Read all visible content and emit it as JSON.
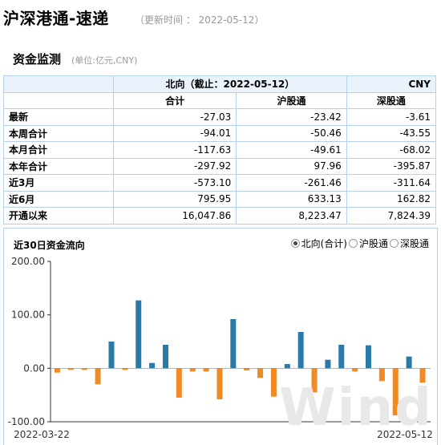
{
  "header": {
    "title": "沪深港通-速递",
    "update_time": "（更新时间 ： 2022-05-12）"
  },
  "section": {
    "title": "资金监测",
    "unit": "(单位:亿元,CNY)"
  },
  "table": {
    "top_title": "北向（截止：2022-05-12）",
    "currency": "CNY",
    "columns": [
      "合计",
      "沪股通",
      "深股通"
    ],
    "rows": [
      {
        "label": "最新",
        "values": [
          "-27.03",
          "-23.42",
          "-3.61"
        ]
      },
      {
        "label": "本周合计",
        "values": [
          "-94.01",
          "-50.46",
          "-43.55"
        ]
      },
      {
        "label": "本月合计",
        "values": [
          "-117.63",
          "-49.61",
          "-68.02"
        ]
      },
      {
        "label": "本年合计",
        "values": [
          "-297.92",
          "97.96",
          "-395.87"
        ]
      },
      {
        "label": "近3月",
        "values": [
          "-573.10",
          "-261.46",
          "-311.64"
        ]
      },
      {
        "label": "近6月",
        "values": [
          "795.95",
          "633.13",
          "162.82"
        ]
      },
      {
        "label": "开通以来",
        "values": [
          "16,047.86",
          "8,223.47",
          "7,824.39"
        ]
      }
    ]
  },
  "chart": {
    "title": "近30日资金流向",
    "legend": [
      {
        "label": "北向(合计)",
        "selected": true
      },
      {
        "label": "沪股通",
        "selected": false
      },
      {
        "label": "深股通",
        "selected": false
      }
    ],
    "watermark": "Wind",
    "colors": {
      "positive": "#2a7aa8",
      "negative": "#f08a24",
      "axis": "#333333",
      "grid": "#dddddd"
    }
  },
  "chart_data": {
    "type": "bar",
    "title": "近30日资金流向",
    "x_start_label": "2022-03-22",
    "x_end_label": "2022-05-12",
    "y_ticks": [
      "200.00",
      "100.00",
      "0.00",
      "-100.00"
    ],
    "ylim": [
      -100,
      200
    ],
    "values": [
      -8,
      -3,
      -3,
      -30,
      50,
      -3,
      127,
      10,
      44,
      -55,
      -6,
      -6,
      -58,
      92,
      -4,
      -18,
      -53,
      8,
      68,
      -45,
      16,
      44,
      -6,
      43,
      -24,
      -88,
      22,
      -27
    ],
    "grid": false
  }
}
